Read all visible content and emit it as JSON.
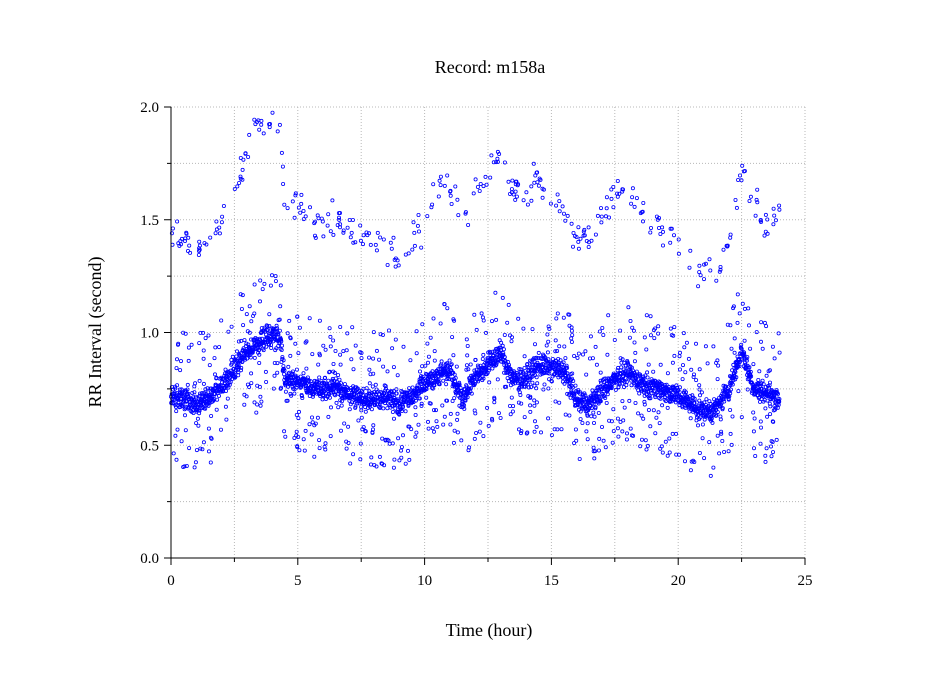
{
  "chart_data": {
    "type": "scatter",
    "title": "Record:  m158a",
    "xlabel": "Time (hour)",
    "ylabel": "RR Interval (second)",
    "xlim": [
      0,
      25
    ],
    "ylim": [
      0.0,
      2.0
    ],
    "xticks": [
      0,
      5,
      10,
      15,
      20,
      25
    ],
    "xtick_labels": [
      "0",
      "5",
      "10",
      "15",
      "20",
      "25"
    ],
    "yticks": [
      0.0,
      0.5,
      1.0,
      1.5,
      2.0
    ],
    "ytick_labels": [
      "0.0",
      "0.5",
      "1.0",
      "1.5",
      "2.0"
    ],
    "grid": true,
    "grid_style": "dotted",
    "marker_color": "#0000ff",
    "marker_shape": "open-circle",
    "series": [
      {
        "name": "",
        "trend_x": [
          0.0,
          0.5,
          1.0,
          1.5,
          2.0,
          2.5,
          3.0,
          3.5,
          4.0,
          4.3,
          4.5,
          5.0,
          5.5,
          6.0,
          6.5,
          7.0,
          7.5,
          8.0,
          8.5,
          9.0,
          9.5,
          10.0,
          10.5,
          11.0,
          11.5,
          12.0,
          12.5,
          13.0,
          13.5,
          14.0,
          14.5,
          15.0,
          15.5,
          16.0,
          16.5,
          17.0,
          17.5,
          18.0,
          18.5,
          19.0,
          19.5,
          20.0,
          20.5,
          21.0,
          21.5,
          22.0,
          22.5,
          23.0,
          23.5,
          24.0
        ],
        "trend_y": [
          0.72,
          0.7,
          0.68,
          0.71,
          0.76,
          0.84,
          0.91,
          0.96,
          0.99,
          0.98,
          0.79,
          0.78,
          0.76,
          0.74,
          0.76,
          0.72,
          0.71,
          0.7,
          0.72,
          0.68,
          0.72,
          0.77,
          0.81,
          0.84,
          0.7,
          0.81,
          0.86,
          0.91,
          0.79,
          0.8,
          0.86,
          0.84,
          0.83,
          0.7,
          0.68,
          0.74,
          0.8,
          0.82,
          0.78,
          0.76,
          0.74,
          0.72,
          0.68,
          0.65,
          0.66,
          0.75,
          0.92,
          0.75,
          0.73,
          0.7
        ],
        "upper_x": [
          0.0,
          0.5,
          1.0,
          1.5,
          2.0,
          2.5,
          3.0,
          3.5,
          4.0,
          4.3,
          4.5,
          5.0,
          5.5,
          6.0,
          6.5,
          7.0,
          7.5,
          8.0,
          8.5,
          9.0,
          9.5,
          10.0,
          10.5,
          11.0,
          11.5,
          12.0,
          12.5,
          13.0,
          13.5,
          14.0,
          14.5,
          15.0,
          15.5,
          16.0,
          16.5,
          17.0,
          17.5,
          18.0,
          18.5,
          19.0,
          19.5,
          20.0,
          20.5,
          21.0,
          21.5,
          22.0,
          22.5,
          23.0,
          23.5,
          24.0
        ],
        "upper_y": [
          1.42,
          1.4,
          1.37,
          1.38,
          1.48,
          1.62,
          1.82,
          1.93,
          1.95,
          1.85,
          1.58,
          1.57,
          1.52,
          1.45,
          1.5,
          1.44,
          1.42,
          1.4,
          1.36,
          1.32,
          1.4,
          1.52,
          1.62,
          1.66,
          1.48,
          1.62,
          1.7,
          1.78,
          1.65,
          1.58,
          1.7,
          1.6,
          1.55,
          1.4,
          1.42,
          1.52,
          1.64,
          1.65,
          1.55,
          1.5,
          1.45,
          1.4,
          1.32,
          1.28,
          1.27,
          1.4,
          1.72,
          1.58,
          1.48,
          1.55
        ]
      }
    ]
  }
}
